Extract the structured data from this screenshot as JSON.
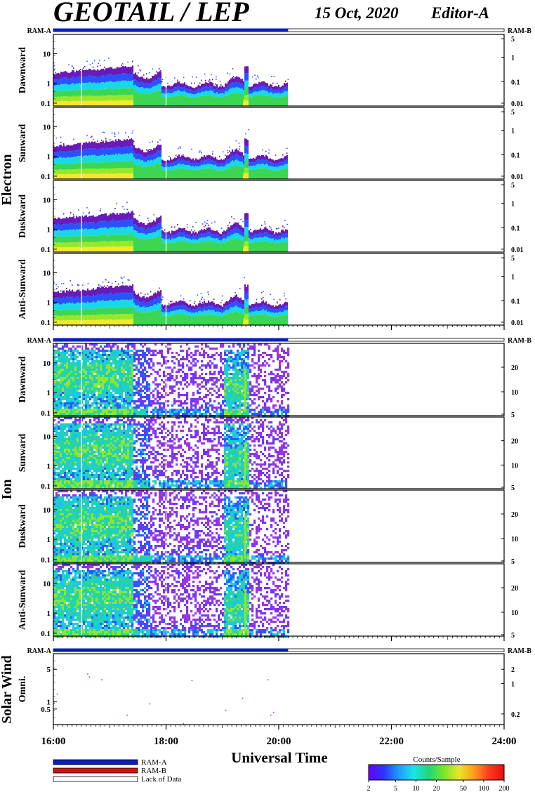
{
  "title": "GEOTAIL / LEP",
  "date": "15 Oct, 2020",
  "editor": "Editor-A",
  "colors": {
    "ram_a": "#0a1fb8",
    "ram_b": "#d41111",
    "frame": "#000000",
    "electron_band": [
      "#6a1ab8",
      "#2a52ff",
      "#19d8e6",
      "#3cd653",
      "#9ae62a",
      "#f2ea2a"
    ],
    "ion_band": [
      "#9a36e0",
      "#6b38f0",
      "#2a5bff",
      "#18c9e6",
      "#29d69a",
      "#8fe62f"
    ],
    "colorbar": [
      "#6a00ff",
      "#2a35ff",
      "#1f9bff",
      "#19e6e6",
      "#1fd67a",
      "#7be62a",
      "#e8e62a",
      "#ff9a1f",
      "#ff3a1f",
      "#e01010"
    ]
  },
  "chart_data": {
    "type": "heatmap",
    "x_unit": "Universal Time",
    "x_range": [
      "16:00",
      "24:00"
    ],
    "x_ticks": [
      "16:00",
      "18:00",
      "20:00",
      "22:00",
      "24:00"
    ],
    "data_coverage": [
      "16:00",
      "20:10"
    ],
    "ram_bar_labels": {
      "left": "RAM-A",
      "right": "RAM-B"
    },
    "groups": [
      {
        "name": "Electron",
        "panels": [
          {
            "label": "Dawnward",
            "yticks": [
              "10",
              "1",
              "0.1"
            ],
            "y2ticks": [
              "5",
              "1",
              "0.1",
              "0.01"
            ]
          },
          {
            "label": "Sunward",
            "yticks": [
              "10",
              "1",
              "0.1"
            ],
            "y2ticks": [
              "5",
              "1",
              "0.1",
              "0.01"
            ]
          },
          {
            "label": "Duskward",
            "yticks": [
              "10",
              "1",
              "0.1"
            ],
            "y2ticks": [
              "5",
              "1",
              "0.1",
              "0.01"
            ]
          },
          {
            "label": "Anti-Sunward",
            "yticks": [
              "10",
              "1",
              "0.1"
            ],
            "y2ticks": [
              "5",
              "1",
              "0.1",
              "0.01"
            ]
          }
        ]
      },
      {
        "name": "Ion",
        "panels": [
          {
            "label": "Dawnward",
            "yticks": [
              "10",
              "1",
              "0.1"
            ],
            "y2ticks": [
              "20",
              "10",
              "5"
            ]
          },
          {
            "label": "Sunward",
            "yticks": [
              "10",
              "1",
              "0.1"
            ],
            "y2ticks": [
              "20",
              "10",
              "5"
            ]
          },
          {
            "label": "Duskward",
            "yticks": [
              "10",
              "1",
              "0.1"
            ],
            "y2ticks": [
              "20",
              "10",
              "5"
            ]
          },
          {
            "label": "Anti-Sunward",
            "yticks": [
              "10",
              "1",
              "0.1"
            ],
            "y2ticks": [
              "20",
              "10",
              "5"
            ]
          }
        ]
      },
      {
        "name": "Solar Wind",
        "panels": [
          {
            "label": "Omni.",
            "yticks": [
              "5",
              "1",
              "0.5"
            ],
            "y2ticks": [
              "2",
              "1",
              "0.2"
            ]
          }
        ]
      }
    ],
    "legend": [
      {
        "label": "RAM-A",
        "color": "#0a1fb8"
      },
      {
        "label": "RAM-B",
        "color": "#d41111"
      },
      {
        "label": "Lack of Data",
        "color": "#ffffff"
      }
    ],
    "colorbar": {
      "title": "Counts/Sample",
      "scale": "log",
      "range": [
        2,
        200
      ],
      "ticks": [
        "2",
        "5",
        "10",
        "20",
        "50",
        "100",
        "200"
      ]
    }
  }
}
